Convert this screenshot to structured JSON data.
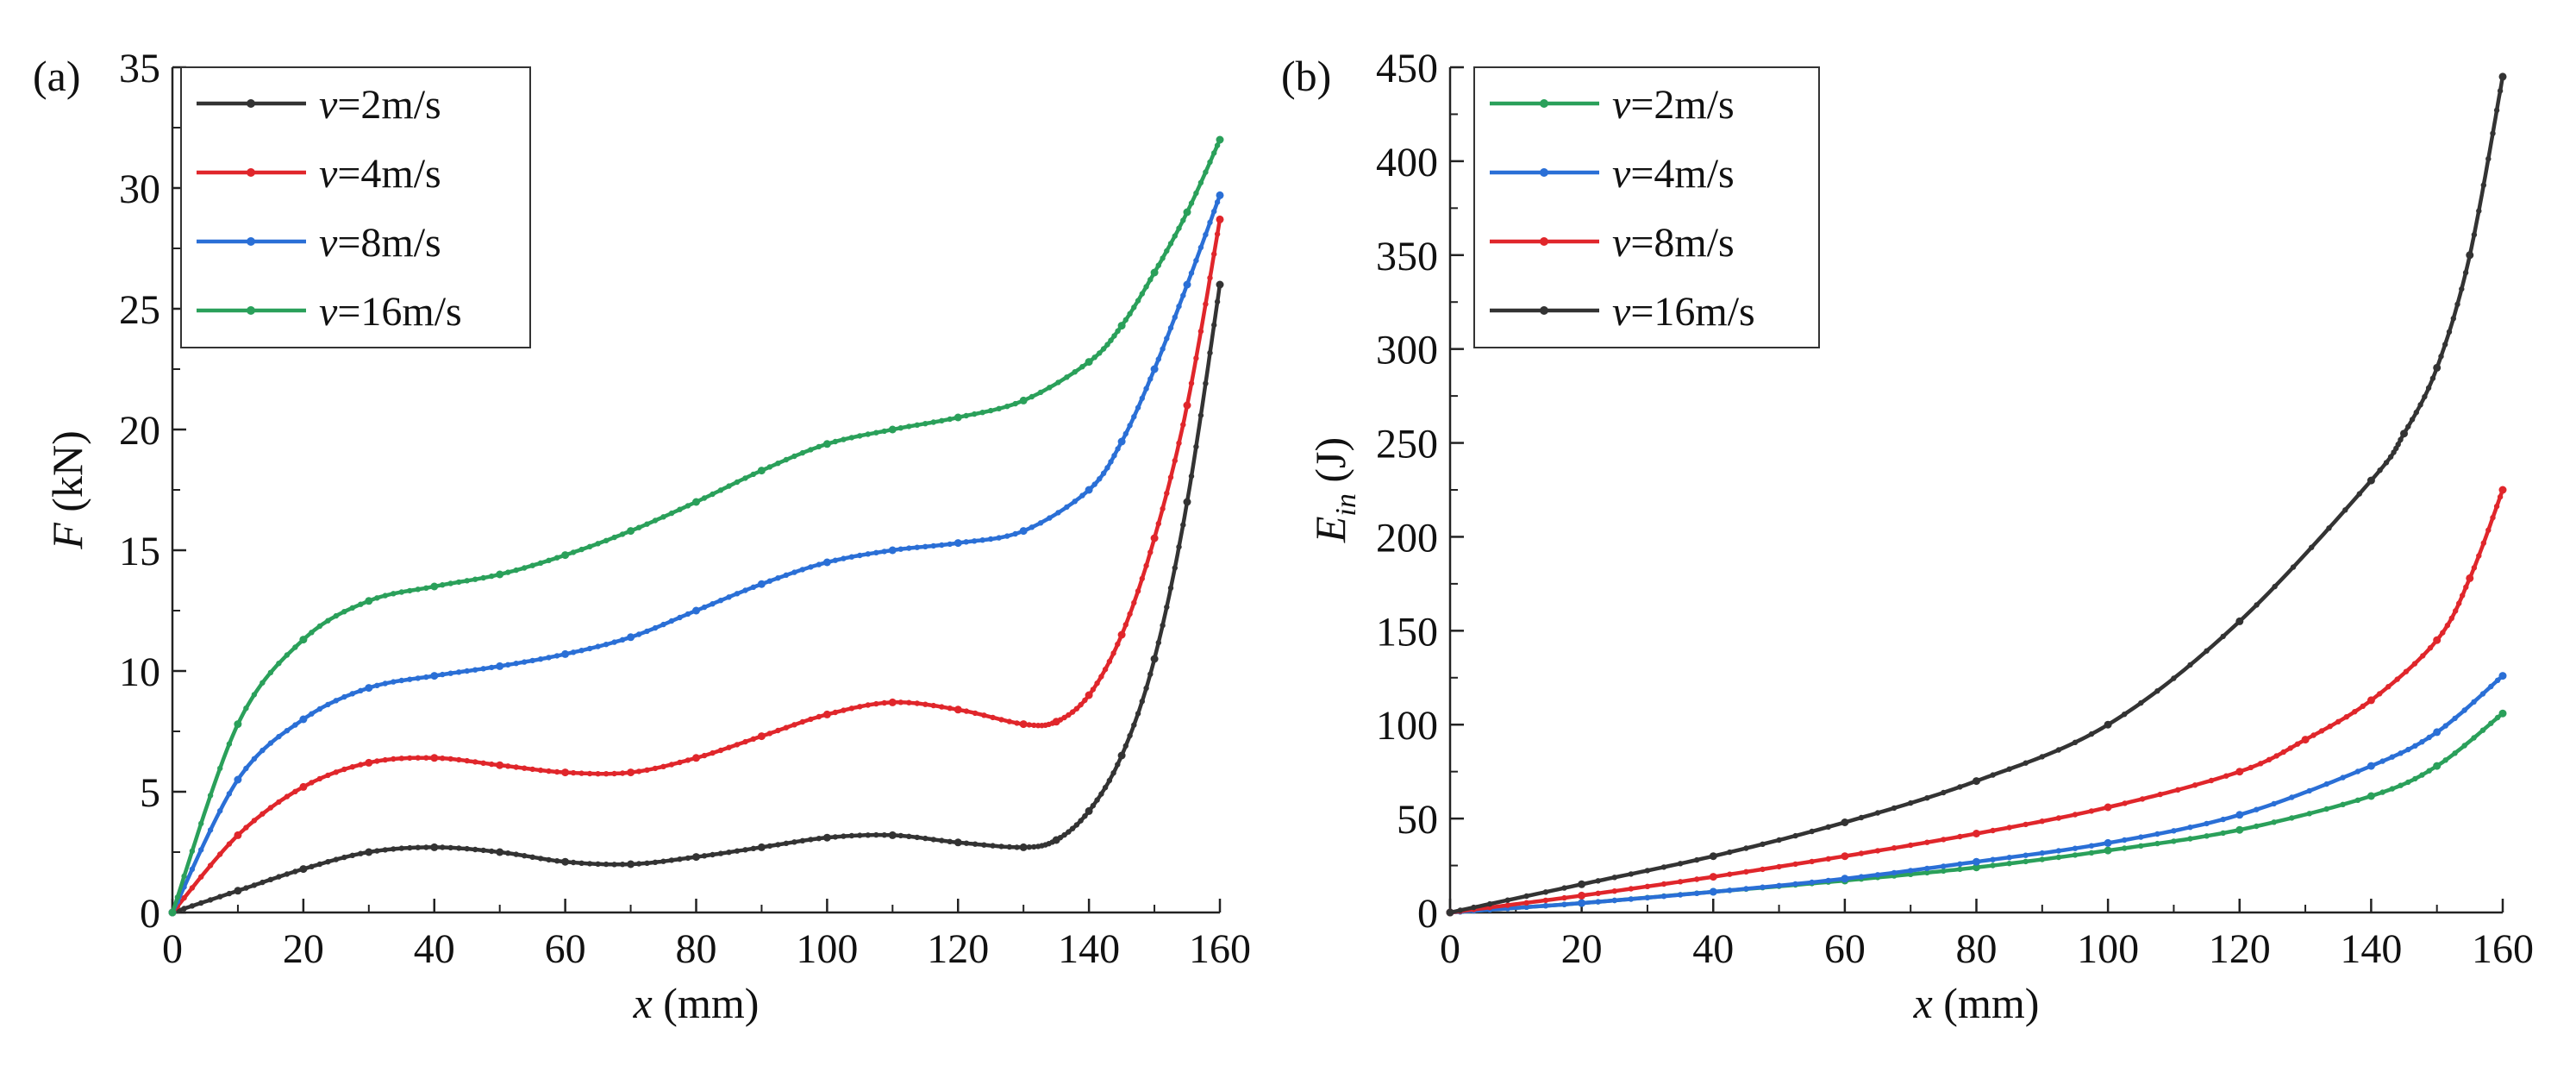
{
  "chart_data": [
    {
      "type": "line",
      "panel_label": "(a)",
      "ylabel_sym": "F",
      "ylabel_unit": " (kN)",
      "xlabel_sym": "x",
      "xlabel_unit": " (mm)",
      "xlim": [
        0,
        160
      ],
      "ylim": [
        0,
        35
      ],
      "xticks": [
        "0",
        "20",
        "40",
        "60",
        "80",
        "100",
        "120",
        "140",
        "160"
      ],
      "yticks": [
        "0",
        "5",
        "10",
        "15",
        "20",
        "25",
        "30",
        "35"
      ],
      "legend_position": "top-left",
      "series": [
        {
          "name": "=2m/s",
          "color": "#333333",
          "x": [
            0,
            10,
            20,
            30,
            40,
            50,
            60,
            70,
            80,
            90,
            100,
            110,
            120,
            130,
            135,
            140,
            145,
            150,
            155,
            160
          ],
          "y": [
            0,
            0.9,
            1.8,
            2.5,
            2.7,
            2.5,
            2.1,
            2.0,
            2.3,
            2.7,
            3.1,
            3.2,
            2.9,
            2.7,
            3.0,
            4.2,
            6.5,
            10.5,
            17,
            26
          ]
        },
        {
          "name": "=4m/s",
          "color": "#e0262b",
          "x": [
            0,
            10,
            20,
            30,
            40,
            50,
            60,
            70,
            80,
            90,
            100,
            110,
            120,
            130,
            135,
            140,
            145,
            150,
            155,
            160
          ],
          "y": [
            0,
            3.2,
            5.2,
            6.2,
            6.4,
            6.1,
            5.8,
            5.8,
            6.4,
            7.3,
            8.2,
            8.7,
            8.4,
            7.8,
            7.9,
            9.0,
            11.5,
            15.5,
            21,
            28.7
          ]
        },
        {
          "name": "=8m/s",
          "color": "#2a6fd6",
          "x": [
            0,
            10,
            20,
            30,
            40,
            50,
            60,
            70,
            80,
            90,
            100,
            110,
            120,
            130,
            140,
            145,
            150,
            155,
            160
          ],
          "y": [
            0,
            5.5,
            8.0,
            9.3,
            9.8,
            10.2,
            10.7,
            11.4,
            12.5,
            13.6,
            14.5,
            15.0,
            15.3,
            15.8,
            17.5,
            19.5,
            22.5,
            26,
            29.7
          ]
        },
        {
          "name": "=16m/s",
          "color": "#2aa05a",
          "x": [
            0,
            10,
            20,
            30,
            40,
            50,
            60,
            70,
            80,
            90,
            100,
            110,
            120,
            130,
            140,
            145,
            150,
            155,
            160
          ],
          "y": [
            0,
            7.8,
            11.3,
            12.9,
            13.5,
            14.0,
            14.8,
            15.8,
            17.0,
            18.3,
            19.4,
            20.0,
            20.5,
            21.2,
            22.8,
            24.3,
            26.5,
            29,
            32
          ]
        }
      ]
    },
    {
      "type": "line",
      "panel_label": "(b)",
      "ylabel_sym": "E",
      "ylabel_sub": "in",
      "ylabel_unit": " (J)",
      "xlabel_sym": "x",
      "xlabel_unit": " (mm)",
      "xlim": [
        0,
        160
      ],
      "ylim": [
        0,
        450
      ],
      "xticks": [
        "0",
        "20",
        "40",
        "60",
        "80",
        "100",
        "120",
        "140",
        "160"
      ],
      "yticks": [
        "0",
        "50",
        "100",
        "150",
        "200",
        "250",
        "300",
        "350",
        "400",
        "450"
      ],
      "legend_position": "top-left",
      "series": [
        {
          "name": "=2m/s",
          "color": "#2aa05a",
          "x": [
            0,
            20,
            40,
            60,
            80,
            100,
            120,
            140,
            150,
            160
          ],
          "y": [
            0,
            5,
            11,
            17,
            24,
            33,
            44,
            62,
            78,
            106
          ]
        },
        {
          "name": "=4m/s",
          "color": "#2a6fd6",
          "x": [
            0,
            20,
            40,
            60,
            80,
            100,
            120,
            140,
            150,
            160
          ],
          "y": [
            0,
            5,
            11,
            18,
            27,
            37,
            52,
            78,
            96,
            126
          ]
        },
        {
          "name": "=8m/s",
          "color": "#e0262b",
          "x": [
            0,
            20,
            40,
            60,
            80,
            100,
            120,
            130,
            140,
            150,
            155,
            160
          ],
          "y": [
            0,
            9,
            19,
            30,
            42,
            56,
            75,
            92,
            113,
            145,
            178,
            225
          ]
        },
        {
          "name": "=16m/s",
          "color": "#333333",
          "x": [
            0,
            20,
            40,
            60,
            80,
            100,
            120,
            140,
            145,
            150,
            155,
            160
          ],
          "y": [
            0,
            15,
            30,
            48,
            70,
            100,
            155,
            230,
            255,
            290,
            350,
            445
          ]
        }
      ]
    }
  ],
  "legend_var": "v"
}
